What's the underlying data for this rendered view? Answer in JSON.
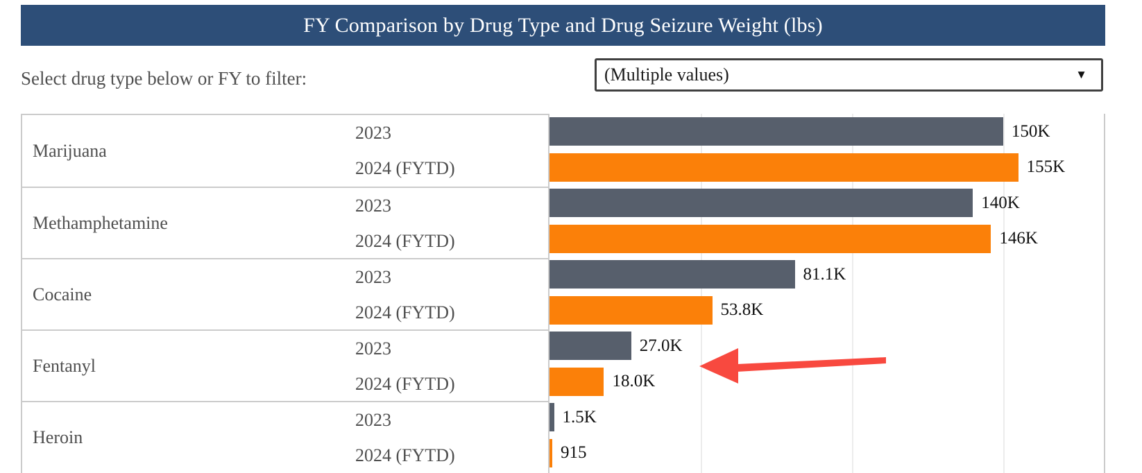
{
  "header": {
    "title": "FY Comparison by Drug Type and Drug Seizure Weight (lbs)"
  },
  "filter": {
    "label": "Select drug type below or FY to filter:",
    "dropdown_value": "(Multiple values)"
  },
  "icons": {
    "dropdown_arrow": "▼"
  },
  "groups": [
    {
      "drug": "Marijuana",
      "rows": [
        {
          "year": "2023",
          "value": 150000,
          "label": "150K"
        },
        {
          "year": "2024 (FYTD)",
          "value": 155000,
          "label": "155K"
        }
      ]
    },
    {
      "drug": "Methamphetamine",
      "rows": [
        {
          "year": "2023",
          "value": 140000,
          "label": "140K"
        },
        {
          "year": "2024 (FYTD)",
          "value": 146000,
          "label": "146K"
        }
      ]
    },
    {
      "drug": "Cocaine",
      "rows": [
        {
          "year": "2023",
          "value": 81100,
          "label": "81.1K"
        },
        {
          "year": "2024 (FYTD)",
          "value": 53800,
          "label": "53.8K"
        }
      ]
    },
    {
      "drug": "Fentanyl",
      "rows": [
        {
          "year": "2023",
          "value": 27000,
          "label": "27.0K"
        },
        {
          "year": "2024 (FYTD)",
          "value": 18000,
          "label": "18.0K"
        }
      ]
    },
    {
      "drug": "Heroin",
      "rows": [
        {
          "year": "2023",
          "value": 1500,
          "label": "1.5K"
        },
        {
          "year": "2024 (FYTD)",
          "value": 915,
          "label": "915"
        }
      ]
    }
  ],
  "chart_data": {
    "type": "bar",
    "orientation": "horizontal",
    "title": "FY Comparison by Drug Type and Drug Seizure Weight (lbs)",
    "categories": [
      "Marijuana",
      "Methamphetamine",
      "Cocaine",
      "Fentanyl",
      "Heroin"
    ],
    "series": [
      {
        "name": "2023",
        "color": "#575f6c",
        "values": [
          150000,
          140000,
          81100,
          27000,
          1500
        ],
        "data_labels": [
          "150K",
          "140K",
          "81.1K",
          "27.0K",
          "1.5K"
        ]
      },
      {
        "name": "2024 (FYTD)",
        "color": "#fb8009",
        "values": [
          155000,
          146000,
          53800,
          18000,
          915
        ],
        "data_labels": [
          "155K",
          "146K",
          "53.8K",
          "18.0K",
          "915"
        ]
      }
    ],
    "xlim": [
      0,
      183300
    ],
    "gridline_interval": 50000,
    "grid": true,
    "legend": "none",
    "annotation": "red arrow pointing left at Fentanyl bars"
  },
  "colors": {
    "header_bg": "#2d4e78",
    "header_text": "#ffffff",
    "bar_2023": "#575f6c",
    "bar_2024": "#fb8009",
    "arrow_red": "#f8493f",
    "text_gray": "#4f4f4f",
    "value_text": "#111111",
    "panel_border": "#cbcbcb",
    "gridline": "#ececec",
    "dropdown_border": "#404040"
  }
}
